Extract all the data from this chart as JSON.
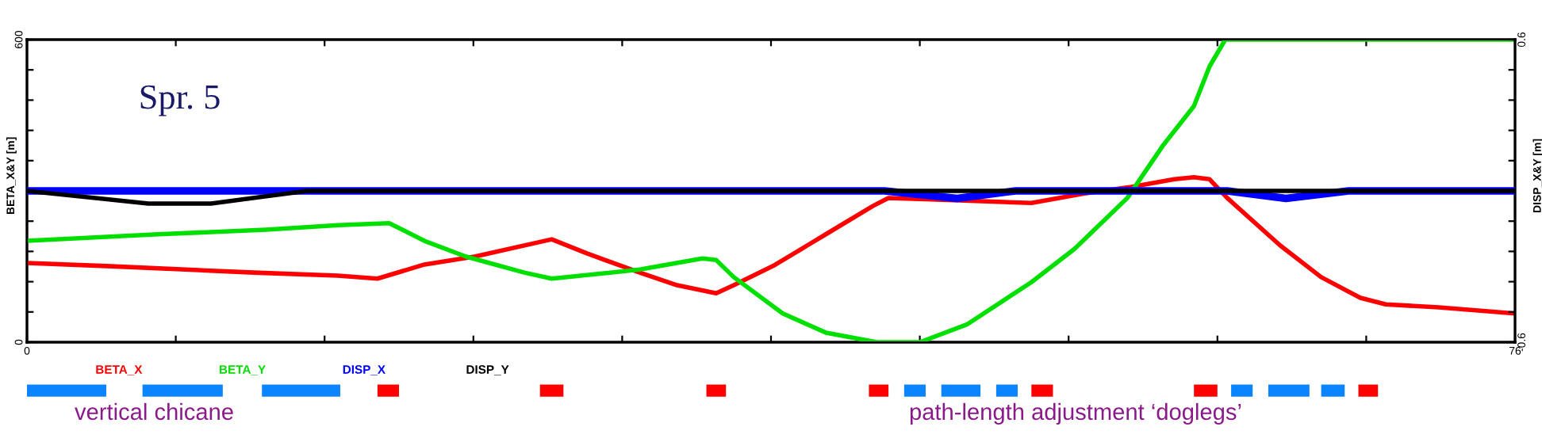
{
  "chart_data": {
    "type": "line",
    "title": "Spr. 5",
    "ylabel": "BETA_X&Y [m]",
    "y2label": "DISP_X&Y [m]",
    "annotations": [
      "vertical chicane",
      "path-length adjustment ‘doglegs’"
    ],
    "xlim": [
      0,
      76
    ],
    "xticks": [
      0,
      {
        "value": 7.6,
        "label": null
      },
      {
        "value": 15.2,
        "label": null
      },
      {
        "value": 22.8,
        "label": null
      },
      {
        "value": 30.4,
        "label": null
      },
      {
        "value": 38,
        "label": null
      },
      {
        "value": 45.6,
        "label": null
      },
      {
        "value": 53.2,
        "label": null
      },
      {
        "value": 60.8,
        "label": null
      },
      {
        "value": 68.4,
        "label": null
      },
      76
    ],
    "ylim": [
      0,
      600
    ],
    "yticks": [
      0,
      {
        "value": 60,
        "label": null
      },
      {
        "value": 120,
        "label": null
      },
      {
        "value": 180,
        "label": null
      },
      {
        "value": 240,
        "label": null
      },
      {
        "value": 300,
        "label": null
      },
      {
        "value": 360,
        "label": null
      },
      {
        "value": 420,
        "label": null
      },
      {
        "value": 480,
        "label": null
      },
      {
        "value": 540,
        "label": null
      },
      600
    ],
    "y2lim": [
      -0.6,
      0.6
    ],
    "y2ticks": [
      {
        "value": -0.6,
        "label": "-0.6"
      },
      {
        "value": -0.48,
        "label": null
      },
      {
        "value": -0.36,
        "label": null
      },
      {
        "value": -0.24,
        "label": null
      },
      {
        "value": -0.12,
        "label": null
      },
      {
        "value": 0,
        "label": null
      },
      {
        "value": 0.12,
        "label": null
      },
      {
        "value": 0.24,
        "label": null
      },
      {
        "value": 0.36,
        "label": null
      },
      {
        "value": 0.48,
        "label": null
      },
      0.6
    ],
    "grid": false,
    "legend": "bottom",
    "marker": "none",
    "line_style": "solid",
    "series": [
      {
        "name": "BETA_X",
        "color": "#ff0000",
        "x": [
          0,
          4.05,
          8.1,
          11.59,
          15.88,
          17.9,
          20.3,
          22.9,
          26.8,
          28.6,
          31.3,
          33.2,
          35.2,
          36.1,
          38.1,
          40.8,
          43.2,
          44.0,
          46.2,
          51.3,
          54.0,
          56.4,
          58.6,
          59.6,
          60.4,
          61.3,
          64.0,
          66.1,
          68.1,
          69.4,
          72.1,
          76.0
        ],
        "values": [
          157,
          151,
          144,
          138,
          132,
          126,
          154,
          170,
          204,
          176,
          138,
          113,
          97,
          113,
          151,
          214,
          270,
          286,
          283,
          276,
          295,
          308,
          323,
          327,
          323,
          286,
          192,
          129,
          88,
          75,
          69,
          57
        ]
      },
      {
        "name": "BETA_Y",
        "color": "#00e000",
        "x": [
          0,
          6.7,
          12.2,
          15.9,
          18.5,
          20.3,
          22.4,
          25.4,
          26.8,
          31.3,
          34.5,
          35.2,
          36.1,
          38.6,
          40.8,
          43.4,
          45.6,
          48.0,
          51.3,
          53.5,
          56.2,
          58.0,
          59.6,
          60.4,
          61.2,
          76
        ],
        "values": [
          201,
          214,
          223,
          232,
          236,
          201,
          170,
          138,
          126,
          144,
          166,
          163,
          129,
          57,
          19,
          0,
          0,
          35,
          119,
          185,
          286,
          389,
          468,
          547,
          600,
          600
        ]
      },
      {
        "name": "DISP_X",
        "color": "#0000ff",
        "axis": "y2",
        "x": [
          0,
          43.8,
          47.5,
          50.5,
          61.3,
          64.3,
          67.5,
          76
        ],
        "values": [
          0,
          0,
          -0.03,
          0,
          0,
          -0.03,
          0,
          0
        ]
      },
      {
        "name": "DISP_Y",
        "color": "#000000",
        "axis": "y2",
        "x": [
          0,
          6.2,
          9.4,
          14.3,
          76
        ],
        "values": [
          0,
          -0.05,
          -0.05,
          0,
          0
        ]
      }
    ]
  }
}
